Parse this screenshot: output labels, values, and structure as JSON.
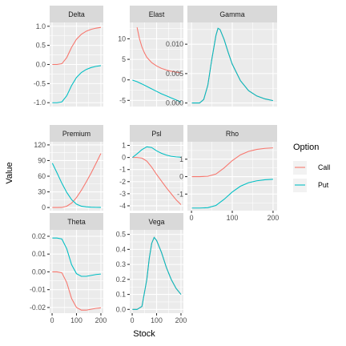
{
  "chart_data": {
    "type": "line",
    "facets": true,
    "xlabel": "Stock",
    "ylabel": "Value",
    "legend": {
      "title": "Option",
      "placement": "right",
      "entries": [
        {
          "name": "Call",
          "color": "#F8766D"
        },
        {
          "name": "Put",
          "color": "#00BFC4"
        }
      ]
    },
    "grid": true,
    "x_range": [
      0,
      200
    ],
    "x_ticks": [
      0,
      100,
      200
    ],
    "x_tick_labels": [
      "0",
      "100",
      "200"
    ],
    "panels": [
      {
        "title": "Delta",
        "ylim": [
          -1.1,
          1.1
        ],
        "yticks": [
          -1.0,
          -0.5,
          0.0,
          0.5,
          1.0
        ],
        "ytick_labels": [
          "-1.0",
          "-0.5",
          "0.0",
          "0.5",
          "1.0"
        ],
        "x": [
          1,
          20,
          40,
          60,
          80,
          100,
          120,
          140,
          160,
          180,
          200
        ],
        "series": [
          {
            "name": "Call",
            "values": [
              0.0,
              0.0,
              0.02,
              0.18,
              0.45,
              0.66,
              0.79,
              0.87,
              0.92,
              0.95,
              0.97
            ]
          },
          {
            "name": "Put",
            "values": [
              -1.0,
              -1.0,
              -0.98,
              -0.82,
              -0.55,
              -0.34,
              -0.21,
              -0.13,
              -0.08,
              -0.05,
              -0.03
            ]
          }
        ]
      },
      {
        "title": "Elast",
        "ylim": [
          -6.5,
          14
        ],
        "yticks": [
          -5,
          0,
          5,
          10
        ],
        "ytick_labels": [
          "-5",
          "0",
          "5",
          "10"
        ],
        "x": [
          20,
          30,
          40,
          50,
          60,
          80,
          100,
          120,
          140,
          160,
          180,
          200
        ],
        "x_put": [
          1,
          20,
          40,
          60,
          80,
          100,
          120,
          140,
          160,
          180,
          200
        ],
        "series": [
          {
            "name": "Call",
            "values": [
              12.8,
              10.0,
              8.0,
              6.6,
              5.5,
              4.2,
              3.4,
              2.8,
              2.4,
              2.1,
              1.9,
              1.7
            ]
          },
          {
            "name": "Put",
            "values": [
              -0.05,
              -0.45,
              -1.0,
              -1.6,
              -2.2,
              -2.8,
              -3.4,
              -3.9,
              -4.4,
              -4.9,
              -5.4
            ]
          }
        ]
      },
      {
        "title": "Gamma",
        "ylim": [
          -0.0006,
          0.0137
        ],
        "yticks": [
          0.0,
          0.005,
          0.01
        ],
        "ytick_labels": [
          "0.000",
          "0.005",
          "0.010"
        ],
        "x": [
          1,
          20,
          30,
          40,
          50,
          60,
          65,
          70,
          80,
          90,
          100,
          120,
          140,
          160,
          180,
          200
        ],
        "series": [
          {
            "name": "Call",
            "values": [
              0.0,
              0.0,
              0.0006,
              0.003,
              0.0075,
              0.0115,
              0.0127,
              0.0125,
              0.0108,
              0.0086,
              0.0066,
              0.0038,
              0.0021,
              0.0012,
              0.0007,
              0.0004
            ]
          },
          {
            "name": "Put",
            "values": [
              0.0,
              0.0,
              0.0006,
              0.003,
              0.0075,
              0.0115,
              0.0127,
              0.0125,
              0.0108,
              0.0086,
              0.0066,
              0.0038,
              0.0021,
              0.0012,
              0.0007,
              0.0004
            ]
          }
        ]
      },
      {
        "title": "Premium",
        "ylim": [
          -6,
          126
        ],
        "yticks": [
          0,
          30,
          60,
          90,
          120
        ],
        "ytick_labels": [
          "0",
          "30",
          "60",
          "90",
          "120"
        ],
        "x": [
          1,
          20,
          40,
          60,
          80,
          100,
          120,
          140,
          160,
          180,
          200
        ],
        "series": [
          {
            "name": "Call",
            "values": [
              0.0,
              0.0,
              0.2,
              2.5,
              8.5,
              19.0,
              33.0,
              49.0,
              66.0,
              84.5,
              103.5
            ]
          },
          {
            "name": "Put",
            "values": [
              85.0,
              66.5,
              46.5,
              29.0,
              15.0,
              6.5,
              2.5,
              1.2,
              0.6,
              0.3,
              0.2
            ]
          }
        ]
      },
      {
        "title": "Psl",
        "ylim": [
          -4.4,
          1.3
        ],
        "yticks": [
          -4,
          -3,
          -2,
          -1,
          0,
          1
        ],
        "ytick_labels": [
          "-4",
          "-3",
          "-2",
          "-1",
          "0",
          "1"
        ],
        "x": [
          1,
          20,
          40,
          60,
          80,
          100,
          120,
          140,
          160,
          180,
          200
        ],
        "series": [
          {
            "name": "Call",
            "values": [
              0.0,
              0.0,
              -0.05,
              -0.3,
              -0.8,
              -1.4,
              -1.95,
              -2.5,
              -3.0,
              -3.5,
              -3.9
            ]
          },
          {
            "name": "Put",
            "values": [
              0.0,
              0.3,
              0.65,
              0.88,
              0.82,
              0.55,
              0.35,
              0.2,
              0.1,
              0.05,
              0.02
            ]
          }
        ]
      },
      {
        "title": "Rho",
        "ylim": [
          -1.95,
          2.0
        ],
        "yticks": [
          -1,
          0,
          1
        ],
        "ytick_labels": [
          "-1",
          "0",
          "1"
        ],
        "x": [
          1,
          20,
          40,
          60,
          80,
          100,
          120,
          140,
          160,
          180,
          200
        ],
        "series": [
          {
            "name": "Call",
            "values": [
              0.0,
              0.0,
              0.02,
              0.15,
              0.5,
              0.92,
              1.25,
              1.45,
              1.56,
              1.62,
              1.65
            ]
          },
          {
            "name": "Put",
            "values": [
              -1.8,
              -1.8,
              -1.78,
              -1.65,
              -1.3,
              -0.88,
              -0.55,
              -0.35,
              -0.24,
              -0.18,
              -0.15
            ]
          }
        ]
      },
      {
        "title": "Theta",
        "ylim": [
          -0.0232,
          0.0236
        ],
        "yticks": [
          -0.02,
          -0.01,
          0.0,
          0.01,
          0.02
        ],
        "ytick_labels": [
          "-0.02",
          "-0.01",
          "0.00",
          "0.01",
          "0.02"
        ],
        "x": [
          1,
          20,
          40,
          60,
          80,
          100,
          120,
          140,
          160,
          180,
          200
        ],
        "series": [
          {
            "name": "Call",
            "values": [
              0.0,
              0.0,
              -0.0005,
              -0.006,
              -0.015,
              -0.02,
              -0.0215,
              -0.0215,
              -0.021,
              -0.0205,
              -0.0202
            ]
          },
          {
            "name": "Put",
            "values": [
              0.019,
              0.019,
              0.0185,
              0.013,
              0.004,
              -0.001,
              -0.0025,
              -0.0025,
              -0.002,
              -0.0015,
              -0.0012
            ]
          }
        ]
      },
      {
        "title": "Vega",
        "ylim": [
          -0.025,
          0.53
        ],
        "yticks": [
          0.0,
          0.1,
          0.2,
          0.3,
          0.4,
          0.5
        ],
        "ytick_labels": [
          "0.0",
          "0.1",
          "0.2",
          "0.3",
          "0.4",
          "0.5"
        ],
        "x": [
          1,
          20,
          40,
          60,
          70,
          80,
          90,
          100,
          120,
          140,
          160,
          180,
          200
        ],
        "series": [
          {
            "name": "Call",
            "values": [
              0.0,
              0.0,
              0.02,
              0.2,
              0.34,
              0.44,
              0.48,
              0.46,
              0.38,
              0.28,
              0.2,
              0.14,
              0.1
            ]
          },
          {
            "name": "Put",
            "values": [
              0.0,
              0.0,
              0.02,
              0.2,
              0.34,
              0.44,
              0.48,
              0.46,
              0.38,
              0.28,
              0.2,
              0.14,
              0.1
            ]
          }
        ]
      }
    ]
  }
}
